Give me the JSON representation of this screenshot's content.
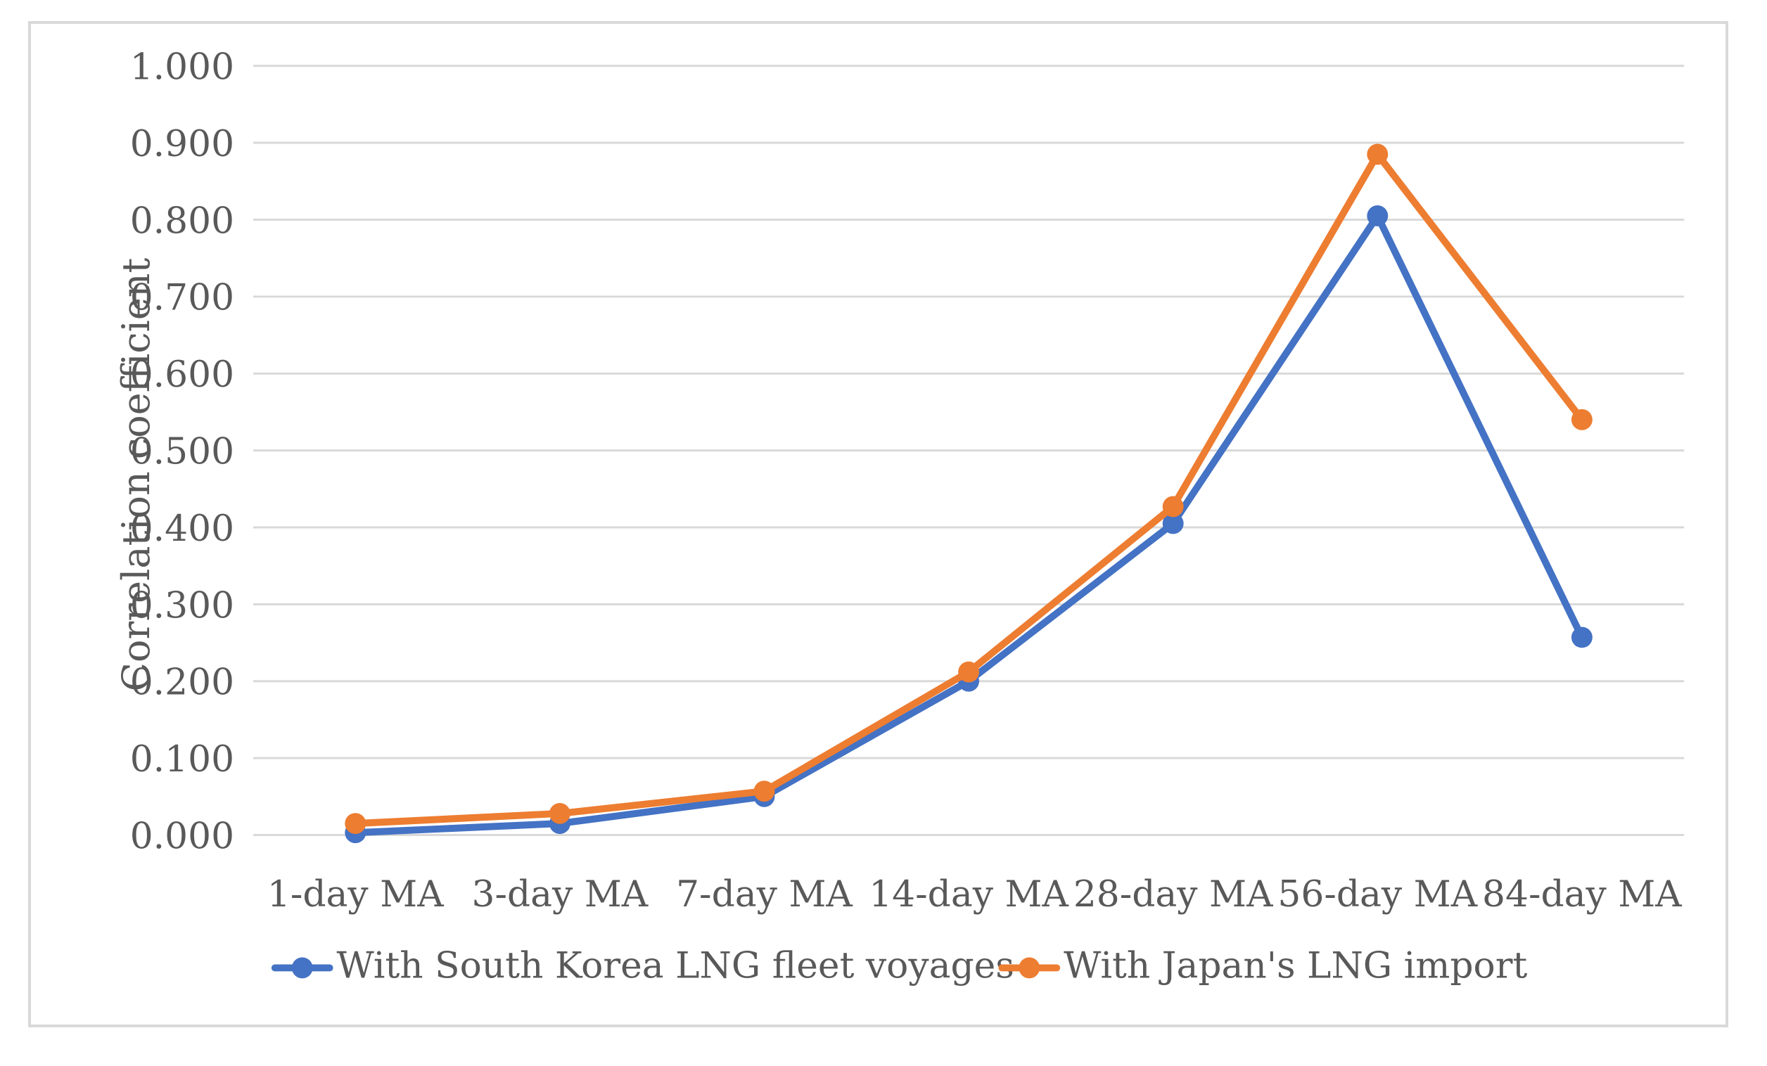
{
  "chart_data": {
    "type": "line",
    "title": "",
    "xlabel": "",
    "ylabel": "Correlation coefficient",
    "categories": [
      "1-day MA",
      "3-day MA",
      "7-day MA",
      "14-day MA",
      "28-day MA",
      "56-day MA",
      "84-day MA"
    ],
    "series": [
      {
        "name": "With South Korea LNG fleet voyages",
        "color": "#4472C4",
        "values": [
          0.003,
          0.015,
          0.05,
          0.2,
          0.405,
          0.805,
          0.257
        ]
      },
      {
        "name": "With Japan's LNG import",
        "color": "#ED7D31",
        "values": [
          0.015,
          0.028,
          0.057,
          0.212,
          0.427,
          0.885,
          0.54
        ]
      }
    ],
    "ylim": [
      0,
      1
    ],
    "yticks": [
      "0.000",
      "0.100",
      "0.200",
      "0.300",
      "0.400",
      "0.500",
      "0.600",
      "0.700",
      "0.800",
      "0.900",
      "1.000"
    ],
    "grid": true,
    "legend_position": "bottom",
    "colors": {
      "text": "#595959",
      "gridline": "#D9D9D9",
      "border": "#D9D9D9",
      "background": "#FFFFFF"
    }
  }
}
